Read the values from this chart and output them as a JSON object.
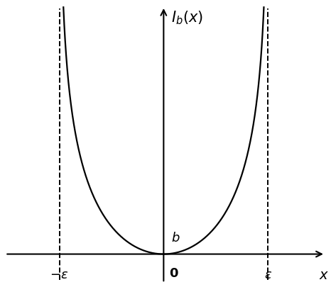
{
  "title": "$I_b(x)$",
  "xlabel": "$x$",
  "x_origin_label": "0",
  "epsilon_label": "$\\varepsilon$",
  "neg_epsilon_label": "$-\\varepsilon$",
  "b_label": "$b$",
  "epsilon": 1.0,
  "b_value": 0.0,
  "curve_color": "#000000",
  "dashed_color": "#000000",
  "axis_color": "#000000",
  "xlim": [
    -1.55,
    1.55
  ],
  "ylim": [
    -0.12,
    1.0
  ],
  "x_axis_y": 0.0,
  "figsize": [
    4.66,
    4.06
  ],
  "dpi": 100
}
